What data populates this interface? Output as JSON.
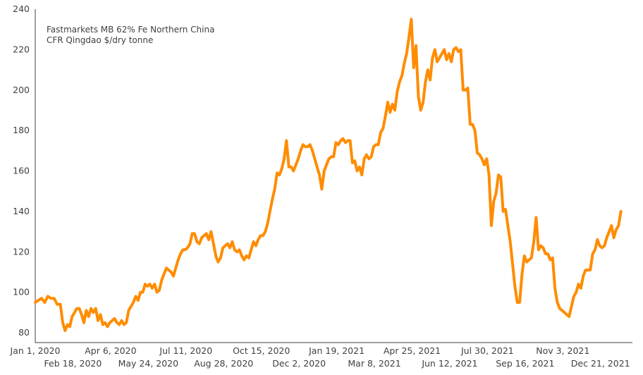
{
  "chart_data": {
    "type": "line",
    "title": "",
    "annotation": [
      "Fastmarkets MB 62% Fe Northern China",
      "CFR Qingdao $/dry tonne"
    ],
    "xlabel": "",
    "ylabel": "",
    "ylim": [
      80,
      240
    ],
    "yticks": [
      80,
      100,
      120,
      140,
      160,
      180,
      200,
      220,
      240
    ],
    "xticks_row1": [
      "Jan 1, 2020",
      "Apr 6, 2020",
      "Jul 11, 2020",
      "Oct 15, 2020",
      "Jan 19, 2021",
      "Apr 25, 2021",
      "Jul 30, 2021",
      "Nov 3, 2021"
    ],
    "xticks_row2": [
      "Feb 18, 2020",
      "May 24, 2020",
      "Aug 28, 2020",
      "Dec 2, 2020",
      "Mar 8, 2021",
      "Jun 12, 2021",
      "Sep 16, 2021",
      "Dec 21, 2021"
    ],
    "grid": false,
    "legend": "none",
    "series": [
      {
        "name": "Fastmarkets MB 62% Fe Northern China CFR Qingdao $/dry tonne",
        "color": "#FF8C00",
        "x_days_from_2020_01_01": [
          0,
          4,
          8,
          12,
          16,
          20,
          24,
          28,
          32,
          35,
          38,
          41,
          44,
          47,
          50,
          53,
          56,
          59,
          62,
          65,
          68,
          71,
          74,
          77,
          80,
          83,
          86,
          89,
          92,
          95,
          98,
          101,
          104,
          107,
          110,
          113,
          116,
          119,
          122,
          125,
          128,
          131,
          134,
          137,
          140,
          143,
          146,
          149,
          152,
          155,
          158,
          161,
          164,
          167,
          170,
          173,
          176,
          179,
          182,
          185,
          188,
          191,
          194,
          197,
          200,
          203,
          206,
          209,
          212,
          215,
          218,
          221,
          224,
          227,
          230,
          233,
          236,
          239,
          242,
          245,
          248,
          251,
          254,
          257,
          260,
          263,
          266,
          269,
          272,
          275,
          278,
          281,
          284,
          287,
          290,
          293,
          296,
          299,
          302,
          305,
          308,
          311,
          314,
          317,
          320,
          323,
          326,
          329,
          332,
          335,
          338,
          341,
          344,
          347,
          350,
          353,
          356,
          359,
          362,
          365,
          368,
          371,
          374,
          377,
          380,
          383,
          386,
          389,
          392,
          395,
          398,
          401,
          404,
          407,
          410,
          413,
          416,
          419,
          422,
          425,
          428,
          431,
          434,
          437,
          440,
          443,
          446,
          449,
          452,
          455,
          458,
          461,
          464,
          467,
          470,
          473,
          476,
          479,
          482,
          485,
          488,
          491,
          494,
          497,
          500,
          503,
          506,
          509,
          512,
          515,
          518,
          521,
          524,
          527,
          530,
          533,
          536,
          539,
          542,
          545,
          548,
          551,
          554,
          557,
          560,
          563,
          566,
          569,
          572,
          575,
          578,
          581,
          584,
          587,
          590,
          593,
          596,
          599,
          602,
          605,
          608,
          611,
          614,
          617,
          620,
          623,
          626,
          629,
          632,
          635,
          638,
          641,
          644,
          647,
          650,
          653,
          656,
          659,
          662,
          665,
          668,
          671,
          674,
          677,
          680,
          683,
          686,
          689,
          692,
          695,
          698,
          701,
          704,
          707,
          710,
          713,
          716,
          719,
          722,
          725,
          728,
          731,
          734,
          737,
          740,
          743,
          746
        ],
        "values": [
          95,
          96,
          97,
          95,
          98,
          97,
          97,
          94,
          94,
          85,
          81,
          84,
          83,
          88,
          90,
          92,
          92,
          89,
          85,
          91,
          88,
          92,
          90,
          92,
          86,
          89,
          84,
          85,
          83,
          85,
          86,
          87,
          85,
          84,
          86,
          84,
          85,
          91,
          93,
          95,
          98,
          96,
          100,
          100,
          104,
          103,
          104,
          102,
          104,
          100,
          101,
          106,
          109,
          112,
          111,
          110,
          108,
          112,
          116,
          119,
          121,
          121,
          122,
          124,
          129,
          129,
          125,
          124,
          127,
          128,
          129,
          126,
          130,
          124,
          118,
          115,
          117,
          122,
          123,
          124,
          122,
          125,
          121,
          120,
          121,
          118,
          116,
          118,
          117,
          121,
          125,
          123,
          126,
          128,
          128,
          130,
          134,
          140,
          146,
          151,
          159,
          158,
          161,
          166,
          175,
          162,
          162,
          160,
          163,
          166,
          170,
          173,
          172,
          172,
          173,
          170,
          166,
          162,
          158,
          151,
          160,
          163,
          166,
          167,
          167,
          174,
          173,
          175,
          176,
          174,
          175,
          175,
          164,
          165,
          160,
          162,
          158,
          166,
          168,
          166,
          167,
          172,
          173,
          173,
          179,
          181,
          187,
          194,
          189,
          193,
          190,
          199,
          204,
          207,
          213,
          218,
          226,
          235,
          211,
          222,
          197,
          190,
          194,
          204,
          210,
          205,
          216,
          220,
          214,
          216,
          218,
          220,
          215,
          218,
          214,
          220,
          221,
          219,
          220,
          200,
          200,
          201,
          183,
          183,
          180,
          169,
          168,
          166,
          163,
          166,
          158,
          133,
          145,
          149,
          158,
          157,
          140,
          141,
          133,
          125,
          114,
          103,
          95,
          95,
          109,
          118,
          115,
          116,
          117,
          125,
          137,
          121,
          123,
          122,
          119,
          119,
          116,
          117,
          102,
          95,
          92,
          91,
          90,
          89,
          88,
          93,
          98,
          100,
          104,
          102,
          108,
          111,
          111,
          111,
          119,
          121,
          126,
          123,
          122,
          123,
          127,
          130,
          133,
          127,
          131,
          133,
          140,
          140,
          148,
          148
        ]
      }
    ]
  }
}
